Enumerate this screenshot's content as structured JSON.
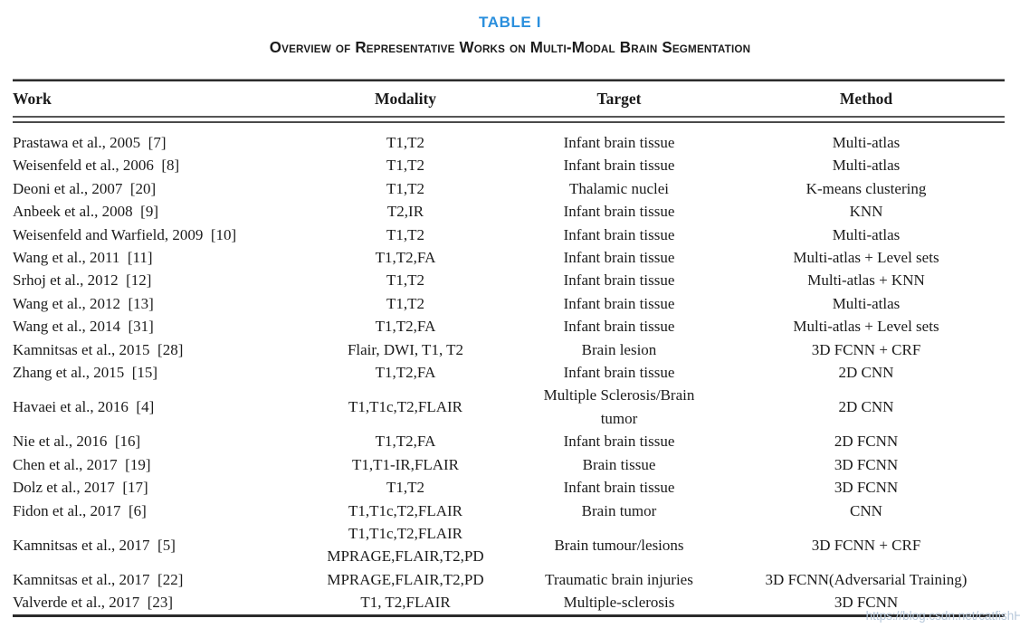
{
  "table": {
    "label": "TABLE I",
    "caption": "Overview of Representative Works on Multi-Modal Brain Segmentation",
    "accent_color": "#2a8fdd",
    "columns": [
      "Work",
      "Modality",
      "Target",
      "Method"
    ],
    "rows": [
      {
        "work": "Prastawa et al., 2005  [7]",
        "modality": "T1,T2",
        "target": "Infant brain tissue",
        "method": "Multi-atlas"
      },
      {
        "work": "Weisenfeld et al., 2006  [8]",
        "modality": "T1,T2",
        "target": "Infant brain tissue",
        "method": "Multi-atlas"
      },
      {
        "work": "Deoni et al., 2007  [20]",
        "modality": "T1,T2",
        "target": "Thalamic nuclei",
        "method": "K-means clustering"
      },
      {
        "work": "Anbeek et al., 2008  [9]",
        "modality": "T2,IR",
        "target": "Infant brain tissue",
        "method": "KNN"
      },
      {
        "work": "Weisenfeld and Warfield, 2009  [10]",
        "modality": "T1,T2",
        "target": "Infant brain tissue",
        "method": "Multi-atlas"
      },
      {
        "work": "Wang et al., 2011  [11]",
        "modality": "T1,T2,FA",
        "target": "Infant brain tissue",
        "method": "Multi-atlas + Level sets"
      },
      {
        "work": "Srhoj et al., 2012  [12]",
        "modality": "T1,T2",
        "target": "Infant brain tissue",
        "method": "Multi-atlas + KNN"
      },
      {
        "work": "Wang et al., 2012  [13]",
        "modality": "T1,T2",
        "target": "Infant brain tissue",
        "method": "Multi-atlas"
      },
      {
        "work": "Wang et al., 2014  [31]",
        "modality": "T1,T2,FA",
        "target": "Infant brain tissue",
        "method": "Multi-atlas + Level sets"
      },
      {
        "work": "Kamnitsas et al., 2015  [28]",
        "modality": "Flair, DWI, T1, T2",
        "target": "Brain lesion",
        "method": "3D FCNN + CRF"
      },
      {
        "work": "Zhang et al., 2015  [15]",
        "modality": "T1,T2,FA",
        "target": "Infant brain tissue",
        "method": "2D CNN"
      },
      {
        "work": "Havaei et al., 2016  [4]",
        "modality": "T1,T1c,T2,FLAIR",
        "target": "Multiple Sclerosis/Brain\ntumor",
        "method": "2D CNN"
      },
      {
        "work": "Nie et al., 2016  [16]",
        "modality": "T1,T2,FA",
        "target": "Infant brain tissue",
        "method": "2D FCNN"
      },
      {
        "work": "Chen et al., 2017  [19]",
        "modality": "T1,T1-IR,FLAIR",
        "target": "Brain tissue",
        "method": "3D FCNN"
      },
      {
        "work": "Dolz et al., 2017  [17]",
        "modality": "T1,T2",
        "target": "Infant brain tissue",
        "method": "3D FCNN"
      },
      {
        "work": "Fidon et al., 2017  [6]",
        "modality": "T1,T1c,T2,FLAIR",
        "target": "Brain tumor",
        "method": "CNN"
      },
      {
        "work": "Kamnitsas et al., 2017  [5]",
        "modality": "T1,T1c,T2,FLAIR\nMPRAGE,FLAIR,T2,PD",
        "target": "Brain tumour/lesions",
        "method": "3D FCNN + CRF"
      },
      {
        "work": "Kamnitsas et al., 2017  [22]",
        "modality": "MPRAGE,FLAIR,T2,PD",
        "target": "Traumatic brain injuries",
        "method": "3D FCNN(Adversarial Training)"
      },
      {
        "work": "Valverde et al., 2017  [23]",
        "modality": "T1, T2,FLAIR",
        "target": "Multiple-sclerosis",
        "method": "3D FCNN"
      }
    ]
  },
  "watermark": {
    "text": "https://blog.csdn.net/catfishH",
    "color": "#b7c8da"
  }
}
